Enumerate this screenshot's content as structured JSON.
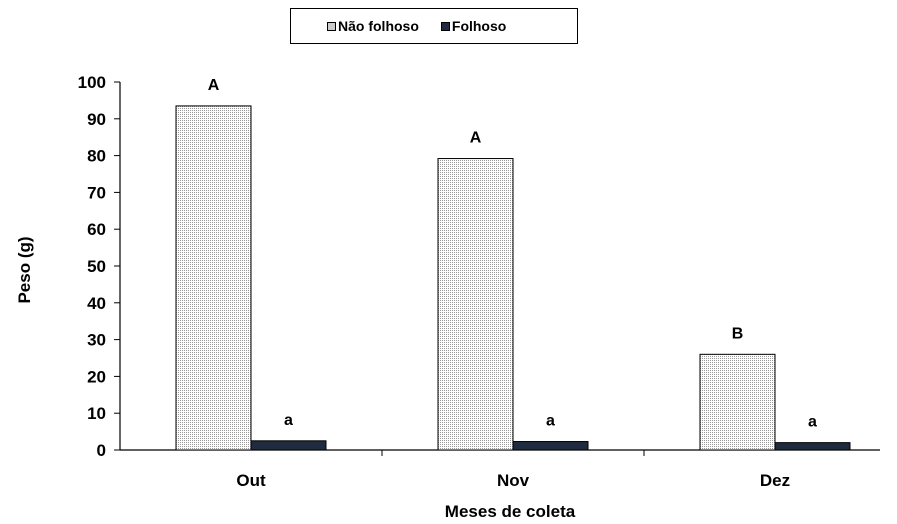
{
  "chart_data": {
    "type": "bar",
    "categories": [
      "Out",
      "Nov",
      "Dez"
    ],
    "series": [
      {
        "name": "Não folhoso",
        "values": [
          93.5,
          79.2,
          26.0
        ],
        "letters": [
          "A",
          "A",
          "B"
        ],
        "color": "#f4f4f4"
      },
      {
        "name": "Folhoso",
        "values": [
          2.5,
          2.3,
          2.0
        ],
        "letters": [
          "a",
          "a",
          "a"
        ],
        "color": "#1f2b3f"
      }
    ],
    "xlabel": "Meses de coleta",
    "ylabel": "Peso (g)",
    "ylim": [
      0,
      100
    ],
    "yticks": [
      0,
      10,
      20,
      30,
      40,
      50,
      60,
      70,
      80,
      90,
      100
    ],
    "grid": false,
    "legend": "top-center"
  }
}
